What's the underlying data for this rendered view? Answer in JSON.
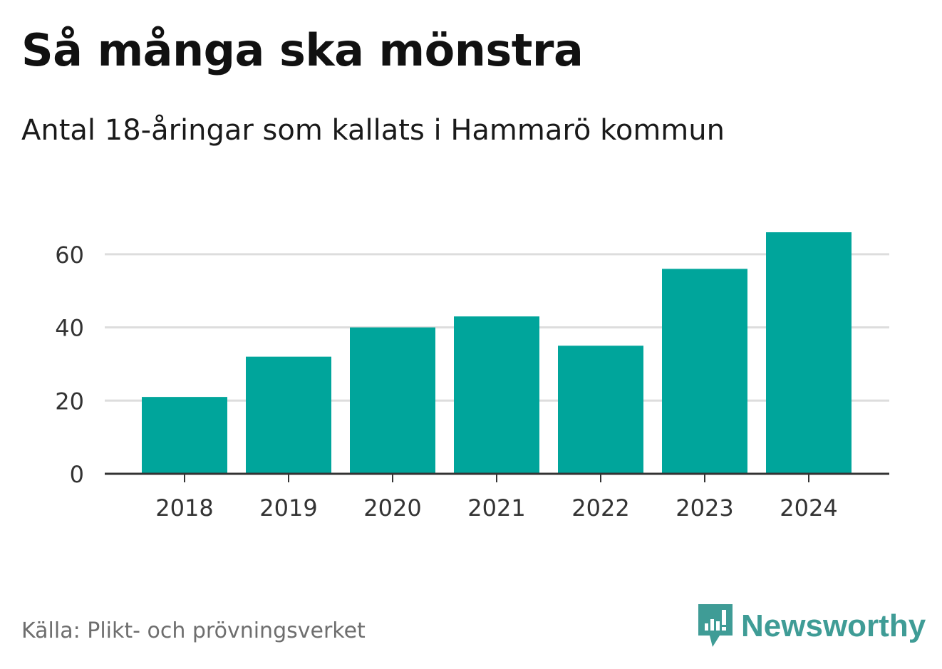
{
  "title": "Så många ska mönstra",
  "subtitle": "Antal 18-åringar som kallats i Hammarö kommun",
  "source": "Källa: Plikt- och prövningsverket",
  "brand": {
    "name": "Newsworthy",
    "color": "#3f9c96"
  },
  "colors": {
    "bar": "#00a59b",
    "grid": "#dddddd",
    "axis": "#333333",
    "tick_text": "#333333"
  },
  "chart_data": {
    "type": "bar",
    "categories": [
      "2018",
      "2019",
      "2020",
      "2021",
      "2022",
      "2023",
      "2024"
    ],
    "values": [
      21,
      32,
      40,
      43,
      35,
      56,
      66
    ],
    "title": "Så många ska mönstra",
    "xlabel": "",
    "ylabel": "",
    "ylim": [
      0,
      66
    ],
    "yticks": [
      0,
      20,
      40,
      60
    ],
    "grid": true,
    "legend": "none"
  }
}
